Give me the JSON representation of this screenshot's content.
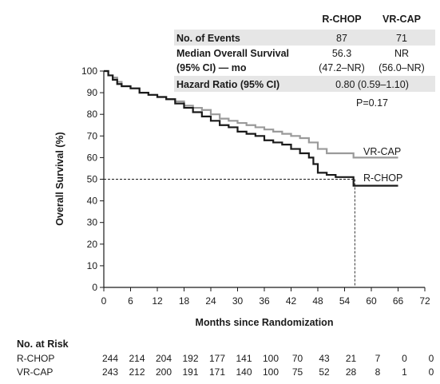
{
  "chart_data": {
    "type": "line",
    "xlabel": "Months since Randomization",
    "ylabel": "Overall Survival (%)",
    "xlim": [
      0,
      72
    ],
    "ylim": [
      0,
      100
    ],
    "xticks": [
      0,
      6,
      12,
      18,
      24,
      30,
      36,
      42,
      48,
      54,
      60,
      66,
      72
    ],
    "yticks": [
      0,
      10,
      20,
      30,
      40,
      50,
      60,
      70,
      80,
      90,
      100
    ],
    "series": [
      {
        "name": "R-CHOP",
        "color": "#1a1a1a",
        "x": [
          0,
          1,
          2,
          3,
          4,
          6,
          8,
          10,
          12,
          14,
          16,
          18,
          20,
          22,
          24,
          26,
          28,
          30,
          32,
          34,
          36,
          38,
          40,
          42,
          44,
          46,
          47,
          48,
          50,
          52,
          54,
          56,
          58,
          60,
          62,
          64,
          66
        ],
        "y": [
          100,
          98,
          96,
          94,
          93,
          92,
          90,
          89,
          88,
          87,
          85,
          83,
          81,
          79,
          77,
          75,
          74,
          72,
          71,
          70,
          68,
          67,
          66,
          64,
          62,
          60,
          57,
          53,
          52,
          51,
          51,
          47,
          47,
          47,
          47,
          47,
          47
        ]
      },
      {
        "name": "VR-CAP",
        "color": "#9a9a9a",
        "x": [
          0,
          1,
          2,
          3,
          4,
          6,
          8,
          10,
          12,
          14,
          16,
          18,
          20,
          22,
          24,
          26,
          28,
          30,
          32,
          34,
          36,
          38,
          40,
          42,
          44,
          46,
          48,
          50,
          52,
          54,
          56,
          58,
          60,
          62,
          64,
          66
        ],
        "y": [
          100,
          98,
          97,
          95,
          93,
          92,
          90,
          89,
          88,
          87,
          86,
          84,
          83,
          82,
          80,
          78,
          77,
          76,
          75,
          74,
          73,
          72,
          71,
          70,
          69,
          67,
          64,
          62,
          62,
          62,
          60,
          60,
          60,
          60,
          60,
          60
        ]
      }
    ],
    "reference_lines": {
      "median_y": 50,
      "median_x": 56.3
    },
    "annotations": [
      "P=0.17"
    ]
  },
  "summary_table": {
    "headers": [
      "R-CHOP",
      "VR-CAP"
    ],
    "rows": [
      {
        "label": [
          "No. of Events"
        ],
        "rchop": [
          "87"
        ],
        "vrcap": [
          "71"
        ]
      },
      {
        "label": [
          "Median Overall Survival",
          "(95% CI) — mo"
        ],
        "rchop": [
          "56.3",
          "(47.2–NR)"
        ],
        "vrcap": [
          "NR",
          "(56.0–NR)"
        ]
      },
      {
        "label": [
          "Hazard Ratio (95% CI)"
        ],
        "rchop": [
          "0.80 (0.59–1.10)"
        ],
        "vrcap": []
      }
    ],
    "p_value": "P=0.17"
  },
  "risk_table": {
    "title": "No. at Risk",
    "rows": [
      {
        "label": "R-CHOP",
        "values": [
          "244",
          "214",
          "204",
          "192",
          "177",
          "141",
          "100",
          "70",
          "43",
          "21",
          "7",
          "0",
          "0"
        ]
      },
      {
        "label": "VR-CAP",
        "values": [
          "243",
          "212",
          "200",
          "191",
          "171",
          "140",
          "100",
          "75",
          "52",
          "28",
          "8",
          "1",
          "0"
        ]
      }
    ]
  },
  "colors": {
    "table_band": "#e6e6e6",
    "rchop_line": "#1a1a1a",
    "vrcap_line": "#9a9a9a",
    "axis": "#1a1a1a"
  }
}
